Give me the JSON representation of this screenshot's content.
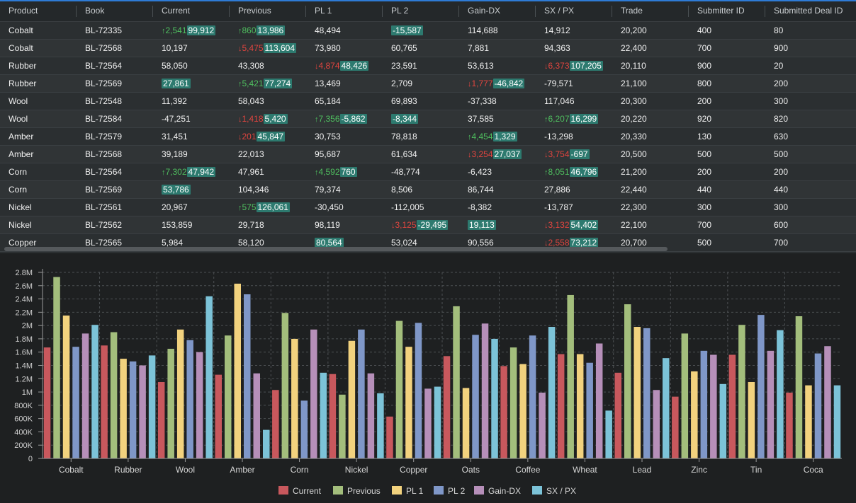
{
  "grid": {
    "columns": [
      "Product",
      "Book",
      "Current",
      "Previous",
      "PL 1",
      "PL 2",
      "Gain-DX",
      "SX / PX",
      "Trade",
      "Submitter ID",
      "Submitted Deal ID"
    ],
    "rows": [
      {
        "product": "Cobalt",
        "book": "BL-72335",
        "current": {
          "delta": "2,541",
          "dir": "up",
          "value": "99,912",
          "hl": true
        },
        "previous": {
          "delta": "860",
          "dir": "up",
          "value": "13,986",
          "hl": true
        },
        "pl1": {
          "value": "48,494"
        },
        "pl2": {
          "value": "-15,587",
          "hl": true
        },
        "gain": {
          "value": "114,688"
        },
        "sxpx": {
          "value": "14,912"
        },
        "trade": "20,200",
        "submitter": "400",
        "deal": "80"
      },
      {
        "product": "Cobalt",
        "book": "BL-72568",
        "current": {
          "value": "10,197"
        },
        "previous": {
          "delta": "5,475",
          "dir": "down",
          "value": "113,604",
          "hl": true
        },
        "pl1": {
          "value": "73,980"
        },
        "pl2": {
          "value": "60,765"
        },
        "gain": {
          "value": "7,881"
        },
        "sxpx": {
          "value": "94,363"
        },
        "trade": "22,400",
        "submitter": "700",
        "deal": "900"
      },
      {
        "product": "Rubber",
        "book": "BL-72564",
        "current": {
          "value": "58,050"
        },
        "previous": {
          "value": "43,308"
        },
        "pl1": {
          "delta": "4,874",
          "dir": "down",
          "value": "48,426",
          "hl": true
        },
        "pl2": {
          "value": "23,591"
        },
        "gain": {
          "value": "53,613"
        },
        "sxpx": {
          "delta": "6,373",
          "dir": "down",
          "value": "107,205",
          "hl": true
        },
        "trade": "20,110",
        "submitter": "900",
        "deal": "20"
      },
      {
        "product": "Rubber",
        "book": "BL-72569",
        "current": {
          "value": "27,861",
          "hl": true
        },
        "previous": {
          "delta": "5,421",
          "dir": "up",
          "value": "77,274",
          "hl": true
        },
        "pl1": {
          "value": "13,469"
        },
        "pl2": {
          "value": "2,709"
        },
        "gain": {
          "delta": "1,777",
          "dir": "down",
          "value": "-46,842",
          "hl": true
        },
        "sxpx": {
          "value": "-79,571"
        },
        "trade": "21,100",
        "submitter": "800",
        "deal": "200"
      },
      {
        "product": "Wool",
        "book": "BL-72548",
        "current": {
          "value": "11,392"
        },
        "previous": {
          "value": "58,043"
        },
        "pl1": {
          "value": "65,184"
        },
        "pl2": {
          "value": "69,893"
        },
        "gain": {
          "value": "-37,338"
        },
        "sxpx": {
          "value": "117,046"
        },
        "trade": "20,300",
        "submitter": "200",
        "deal": "300"
      },
      {
        "product": "Wool",
        "book": "BL-72584",
        "current": {
          "value": "-47,251"
        },
        "previous": {
          "delta": "1,418",
          "dir": "down",
          "value": "5,420",
          "hl": true
        },
        "pl1": {
          "delta": "7,356",
          "dir": "up",
          "value": "-5,862",
          "hl": true
        },
        "pl2": {
          "value": "-8,344",
          "hl": true
        },
        "gain": {
          "value": "37,585"
        },
        "sxpx": {
          "delta": "6,207",
          "dir": "up",
          "value": "16,299",
          "hl": true
        },
        "trade": "20,220",
        "submitter": "920",
        "deal": "820"
      },
      {
        "product": "Amber",
        "book": "BL-72579",
        "current": {
          "value": "31,451"
        },
        "previous": {
          "delta": "201",
          "dir": "down",
          "value": "45,847",
          "hl": true
        },
        "pl1": {
          "value": "30,753"
        },
        "pl2": {
          "value": "78,818"
        },
        "gain": {
          "delta": "4,454",
          "dir": "up",
          "value": "1,329",
          "hl": true
        },
        "sxpx": {
          "value": "-13,298"
        },
        "trade": "20,330",
        "submitter": "130",
        "deal": "630"
      },
      {
        "product": "Amber",
        "book": "BL-72568",
        "current": {
          "value": "39,189"
        },
        "previous": {
          "value": "22,013"
        },
        "pl1": {
          "value": "95,687"
        },
        "pl2": {
          "value": "61,634"
        },
        "gain": {
          "delta": "3,254",
          "dir": "down",
          "value": "27,037",
          "hl": true
        },
        "sxpx": {
          "delta": "3,754",
          "dir": "down",
          "value": "-697",
          "hl": true
        },
        "trade": "20,500",
        "submitter": "500",
        "deal": "500"
      },
      {
        "product": "Corn",
        "book": "BL-72564",
        "current": {
          "delta": "7,302",
          "dir": "up",
          "value": "47,942",
          "hl": true
        },
        "previous": {
          "value": "47,961"
        },
        "pl1": {
          "delta": "4,592",
          "dir": "up",
          "value": "760",
          "hl": true
        },
        "pl2": {
          "value": "-48,774"
        },
        "gain": {
          "value": "-6,423"
        },
        "sxpx": {
          "delta": "8,051",
          "dir": "up",
          "value": "46,796",
          "hl": true
        },
        "trade": "21,200",
        "submitter": "200",
        "deal": "200"
      },
      {
        "product": "Corn",
        "book": "BL-72569",
        "current": {
          "value": "53,786",
          "hl": true
        },
        "previous": {
          "value": "104,346"
        },
        "pl1": {
          "value": "79,374"
        },
        "pl2": {
          "value": "8,506"
        },
        "gain": {
          "value": "86,744"
        },
        "sxpx": {
          "value": "27,886"
        },
        "trade": "22,440",
        "submitter": "440",
        "deal": "440"
      },
      {
        "product": "Nickel",
        "book": "BL-72561",
        "current": {
          "value": "20,967"
        },
        "previous": {
          "delta": "575",
          "dir": "up",
          "value": "126,061",
          "hl": true
        },
        "pl1": {
          "value": "-30,450"
        },
        "pl2": {
          "value": "-112,005"
        },
        "gain": {
          "value": "-8,382"
        },
        "sxpx": {
          "value": "-13,787"
        },
        "trade": "22,300",
        "submitter": "300",
        "deal": "300"
      },
      {
        "product": "Nickel",
        "book": "BL-72562",
        "current": {
          "value": "153,859"
        },
        "previous": {
          "value": "29,718"
        },
        "pl1": {
          "value": "98,119"
        },
        "pl2": {
          "delta": "3,125",
          "dir": "down",
          "value": "-29,495",
          "hl": true
        },
        "gain": {
          "value": "19,113",
          "hl": true
        },
        "sxpx": {
          "delta": "3,132",
          "dir": "down",
          "value": "54,402",
          "hl": true
        },
        "trade": "22,100",
        "submitter": "700",
        "deal": "600"
      },
      {
        "product": "Copper",
        "book": "BL-72565",
        "current": {
          "value": "5,984"
        },
        "previous": {
          "value": "58,120"
        },
        "pl1": {
          "value": "80,564",
          "hl": true
        },
        "pl2": {
          "value": "53,024"
        },
        "gain": {
          "value": "90,556"
        },
        "sxpx": {
          "delta": "2,558",
          "dir": "down",
          "value": "73,212",
          "hl": true
        },
        "trade": "20,700",
        "submitter": "500",
        "deal": "700"
      }
    ]
  },
  "chart_data": {
    "type": "bar",
    "categories": [
      "Cobalt",
      "Rubber",
      "Wool",
      "Amber",
      "Corn",
      "Nickel",
      "Copper",
      "Oats",
      "Coffee",
      "Wheat",
      "Lead",
      "Zinc",
      "Tin",
      "Coca"
    ],
    "ylim": [
      0,
      2800000
    ],
    "yticks": [
      "0",
      "200K",
      "400K",
      "600K",
      "800K",
      "1M",
      "1.2M",
      "1.4M",
      "1.6M",
      "1.8M",
      "2M",
      "2.2M",
      "2.4M",
      "2.6M",
      "2.8M"
    ],
    "grid": true,
    "legend": "bottom",
    "series": [
      {
        "name": "Current",
        "color": "#c8585d",
        "values": [
          1670000,
          1700000,
          1150000,
          1260000,
          1030000,
          1270000,
          630000,
          1540000,
          1390000,
          1570000,
          1290000,
          930000,
          1560000,
          990000
        ]
      },
      {
        "name": "Previous",
        "color": "#a3be7c",
        "values": [
          2730000,
          1900000,
          1650000,
          1850000,
          2190000,
          960000,
          2070000,
          2290000,
          1670000,
          2460000,
          2320000,
          1880000,
          2010000,
          2140000
        ]
      },
      {
        "name": "PL 1",
        "color": "#f2d27e",
        "values": [
          2150000,
          1500000,
          1940000,
          2630000,
          1800000,
          1770000,
          1680000,
          1060000,
          1420000,
          1570000,
          1980000,
          1310000,
          1150000,
          1100000
        ]
      },
      {
        "name": "PL 2",
        "color": "#7f97c8",
        "values": [
          1680000,
          1460000,
          1780000,
          2470000,
          870000,
          1940000,
          2040000,
          1860000,
          1850000,
          1440000,
          1960000,
          1620000,
          2160000,
          1580000
        ]
      },
      {
        "name": "Gain-DX",
        "color": "#b68fb9",
        "values": [
          1880000,
          1400000,
          1600000,
          1280000,
          1940000,
          1280000,
          1050000,
          2030000,
          990000,
          1730000,
          1030000,
          1560000,
          1620000,
          1690000
        ]
      },
      {
        "name": "SX / PX",
        "color": "#7cc3d8",
        "values": [
          2010000,
          1550000,
          2440000,
          430000,
          1290000,
          980000,
          1080000,
          1800000,
          1980000,
          720000,
          1510000,
          1120000,
          1930000,
          1100000
        ]
      }
    ]
  }
}
